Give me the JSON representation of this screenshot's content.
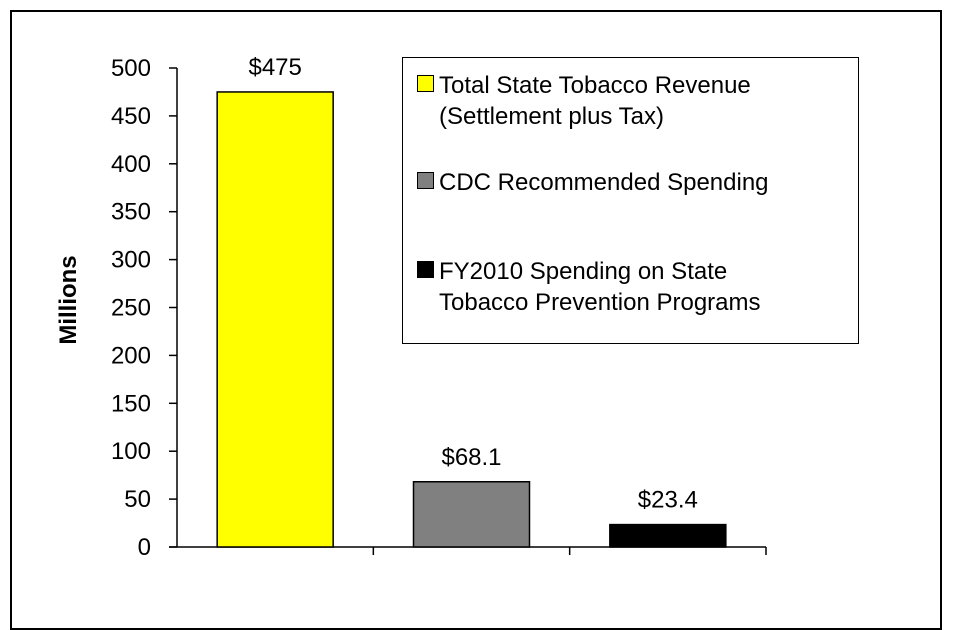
{
  "chart_data": {
    "type": "bar",
    "title": "",
    "xlabel": "",
    "ylabel": "Millions",
    "ylim": [
      0,
      500
    ],
    "yticks": [
      0,
      50,
      100,
      150,
      200,
      250,
      300,
      350,
      400,
      450,
      500
    ],
    "grid": false,
    "legend_position": "top-right",
    "categories": [
      "Total State Tobacco Revenue (Settlement plus Tax)",
      "CDC Recommended Spending",
      "FY2010 Spending on State Tobacco Prevention Programs"
    ],
    "values": [
      475,
      68.1,
      23.4
    ],
    "data_labels": [
      "$475",
      "$68.1",
      "$23.4"
    ],
    "colors": [
      "#ffff00",
      "#808080",
      "#000000"
    ]
  },
  "legend": {
    "items": [
      {
        "label": "Total State Tobacco Revenue\n(Settlement plus Tax)",
        "color": "#ffff00"
      },
      {
        "label": "CDC Recommended Spending",
        "color": "#808080"
      },
      {
        "label": "FY2010 Spending on State\nTobacco Prevention Programs",
        "color": "#000000"
      }
    ]
  }
}
